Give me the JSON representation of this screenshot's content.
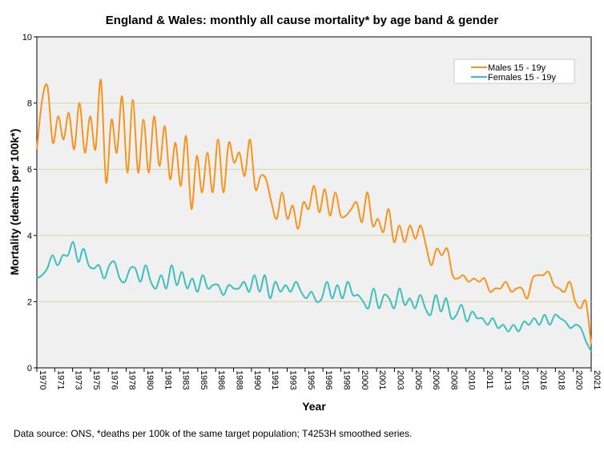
{
  "chart_data": {
    "type": "line",
    "title": "England & Wales: monthly all cause mortality* by age band & gender",
    "xlabel": "Year",
    "ylabel": "Mortality (deaths per 100k*)",
    "ylim": [
      0,
      10
    ],
    "yticks": [
      "0",
      "2",
      "4",
      "6",
      "8",
      "10"
    ],
    "xlim": [
      1970,
      2021.5
    ],
    "xticks": [
      "1970",
      "1971",
      "1973",
      "1975",
      "1976",
      "1978",
      "1980",
      "1981",
      "1983",
      "1985",
      "1986",
      "1988",
      "1990",
      "1991",
      "1993",
      "1995",
      "1996",
      "1998",
      "2000",
      "2001",
      "2003",
      "2005",
      "2006",
      "2008",
      "2010",
      "2011",
      "2013",
      "2015",
      "2016",
      "2018",
      "2020",
      "2021"
    ],
    "grid": true,
    "legend_position": "top-right",
    "series": [
      {
        "name": "Males 15 - 19y",
        "color": "#f7941d",
        "values": [
          6.6,
          8.1,
          8.5,
          6.8,
          7.6,
          6.9,
          7.7,
          6.6,
          8.0,
          6.5,
          7.6,
          6.6,
          8.7,
          5.6,
          7.5,
          6.5,
          8.2,
          5.9,
          8.1,
          5.9,
          7.5,
          5.9,
          7.6,
          6.1,
          7.3,
          5.7,
          6.8,
          5.5,
          7.0,
          4.8,
          6.4,
          5.3,
          6.5,
          5.3,
          6.9,
          5.3,
          6.8,
          6.2,
          6.5,
          5.8,
          6.9,
          5.4,
          5.8,
          5.7,
          5.0,
          4.5,
          5.3,
          4.5,
          4.9,
          4.2,
          5.0,
          4.8,
          5.5,
          4.7,
          5.4,
          4.6,
          5.3,
          4.6,
          4.6,
          4.8,
          5.0,
          4.4,
          5.3,
          4.3,
          4.5,
          4.1,
          4.8,
          3.8,
          4.3,
          3.8,
          4.3,
          3.9,
          4.3,
          3.7,
          3.1,
          3.6,
          3.4,
          3.6,
          2.8,
          2.7,
          2.8,
          2.6,
          2.7,
          2.6,
          2.7,
          2.3,
          2.4,
          2.4,
          2.6,
          2.3,
          2.4,
          2.4,
          2.1,
          2.7,
          2.8,
          2.8,
          2.9,
          2.5,
          2.4,
          2.3,
          2.6,
          2.0,
          1.8,
          2.0,
          0.7
        ]
      },
      {
        "name": "Females 15 - 19y",
        "color": "#3cbfbf",
        "values": [
          2.7,
          2.8,
          3.0,
          3.4,
          3.1,
          3.4,
          3.4,
          3.8,
          3.2,
          3.6,
          3.1,
          3.0,
          3.1,
          2.7,
          3.1,
          3.2,
          2.7,
          2.6,
          3.0,
          3.0,
          2.6,
          3.1,
          2.6,
          2.4,
          2.8,
          2.4,
          3.1,
          2.5,
          2.9,
          2.4,
          2.7,
          2.3,
          2.8,
          2.4,
          2.5,
          2.5,
          2.2,
          2.5,
          2.4,
          2.4,
          2.6,
          2.3,
          2.8,
          2.3,
          2.8,
          2.1,
          2.6,
          2.3,
          2.5,
          2.3,
          2.6,
          2.3,
          2.1,
          2.3,
          2.0,
          2.1,
          2.6,
          2.1,
          2.5,
          2.1,
          2.6,
          2.2,
          2.2,
          2.0,
          1.8,
          2.4,
          1.8,
          2.2,
          2.1,
          1.8,
          2.4,
          1.9,
          2.1,
          1.8,
          2.2,
          1.8,
          1.6,
          2.2,
          1.7,
          2.1,
          1.5,
          1.6,
          1.9,
          1.4,
          1.7,
          1.5,
          1.5,
          1.3,
          1.5,
          1.2,
          1.3,
          1.1,
          1.3,
          1.1,
          1.4,
          1.3,
          1.5,
          1.3,
          1.6,
          1.3,
          1.6,
          1.5,
          1.4,
          1.2,
          1.3,
          1.2,
          0.8,
          0.5
        ]
      }
    ]
  },
  "footer": "Data source: ONS, *deaths per 100k of the same target population; T4253H smoothed series."
}
